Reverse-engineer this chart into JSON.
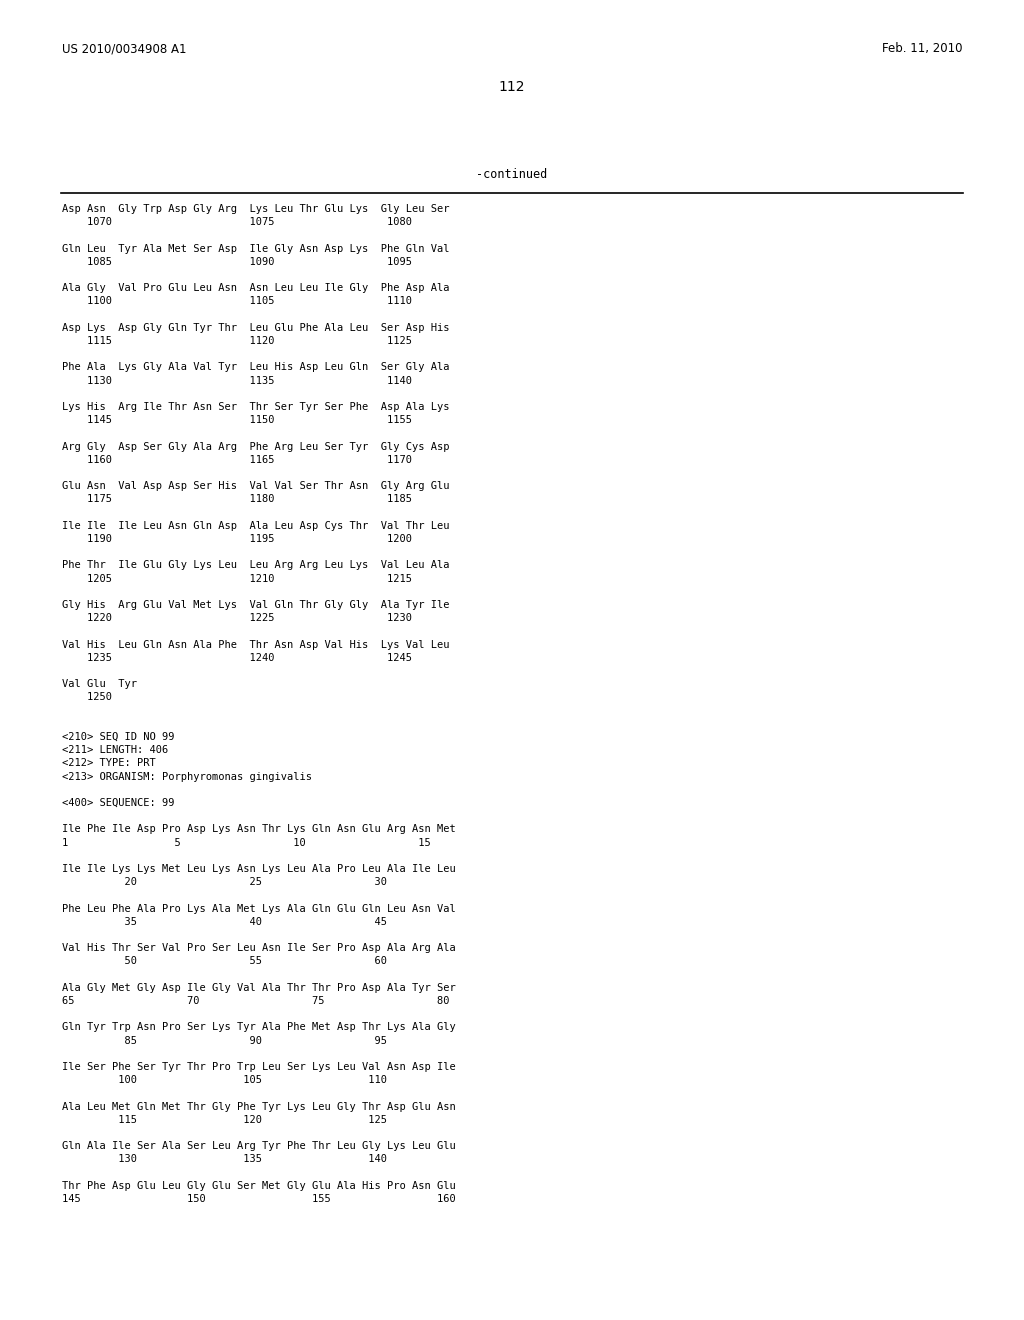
{
  "header_left": "US 2010/0034908 A1",
  "header_right": "Feb. 11, 2010",
  "page_number": "112",
  "continued_label": "-continued",
  "background_color": "#ffffff",
  "text_color": "#000000",
  "content_lines": [
    "Asp Asn  Gly Trp Asp Gly Arg  Lys Leu Thr Glu Lys  Gly Leu Ser",
    "    1070                      1075                  1080",
    "",
    "Gln Leu  Tyr Ala Met Ser Asp  Ile Gly Asn Asp Lys  Phe Gln Val",
    "    1085                      1090                  1095",
    "",
    "Ala Gly  Val Pro Glu Leu Asn  Asn Leu Leu Ile Gly  Phe Asp Ala",
    "    1100                      1105                  1110",
    "",
    "Asp Lys  Asp Gly Gln Tyr Thr  Leu Glu Phe Ala Leu  Ser Asp His",
    "    1115                      1120                  1125",
    "",
    "Phe Ala  Lys Gly Ala Val Tyr  Leu His Asp Leu Gln  Ser Gly Ala",
    "    1130                      1135                  1140",
    "",
    "Lys His  Arg Ile Thr Asn Ser  Thr Ser Tyr Ser Phe  Asp Ala Lys",
    "    1145                      1150                  1155",
    "",
    "Arg Gly  Asp Ser Gly Ala Arg  Phe Arg Leu Ser Tyr  Gly Cys Asp",
    "    1160                      1165                  1170",
    "",
    "Glu Asn  Val Asp Asp Ser His  Val Val Ser Thr Asn  Gly Arg Glu",
    "    1175                      1180                  1185",
    "",
    "Ile Ile  Ile Leu Asn Gln Asp  Ala Leu Asp Cys Thr  Val Thr Leu",
    "    1190                      1195                  1200",
    "",
    "Phe Thr  Ile Glu Gly Lys Leu  Leu Arg Arg Leu Lys  Val Leu Ala",
    "    1205                      1210                  1215",
    "",
    "Gly His  Arg Glu Val Met Lys  Val Gln Thr Gly Gly  Ala Tyr Ile",
    "    1220                      1225                  1230",
    "",
    "Val His  Leu Gln Asn Ala Phe  Thr Asn Asp Val His  Lys Val Leu",
    "    1235                      1240                  1245",
    "",
    "Val Glu  Tyr",
    "    1250",
    "",
    "",
    "<210> SEQ ID NO 99",
    "<211> LENGTH: 406",
    "<212> TYPE: PRT",
    "<213> ORGANISM: Porphyromonas gingivalis",
    "",
    "<400> SEQUENCE: 99",
    "",
    "Ile Phe Ile Asp Pro Asp Lys Asn Thr Lys Gln Asn Glu Arg Asn Met",
    "1                 5                  10                  15",
    "",
    "Ile Ile Lys Lys Met Leu Lys Asn Lys Leu Ala Pro Leu Ala Ile Leu",
    "          20                  25                  30",
    "",
    "Phe Leu Phe Ala Pro Lys Ala Met Lys Ala Gln Glu Gln Leu Asn Val",
    "          35                  40                  45",
    "",
    "Val His Thr Ser Val Pro Ser Leu Asn Ile Ser Pro Asp Ala Arg Ala",
    "          50                  55                  60",
    "",
    "Ala Gly Met Gly Asp Ile Gly Val Ala Thr Thr Pro Asp Ala Tyr Ser",
    "65                  70                  75                  80",
    "",
    "Gln Tyr Trp Asn Pro Ser Lys Tyr Ala Phe Met Asp Thr Lys Ala Gly",
    "          85                  90                  95",
    "",
    "Ile Ser Phe Ser Tyr Thr Pro Trp Leu Ser Lys Leu Val Asn Asp Ile",
    "         100                 105                 110",
    "",
    "Ala Leu Met Gln Met Thr Gly Phe Tyr Lys Leu Gly Thr Asp Glu Asn",
    "         115                 120                 125",
    "",
    "Gln Ala Ile Ser Ala Ser Leu Arg Tyr Phe Thr Leu Gly Lys Leu Glu",
    "         130                 135                 140",
    "",
    "Thr Phe Asp Glu Leu Gly Glu Ser Met Gly Glu Ala His Pro Asn Glu",
    "145                 150                 155                 160"
  ]
}
